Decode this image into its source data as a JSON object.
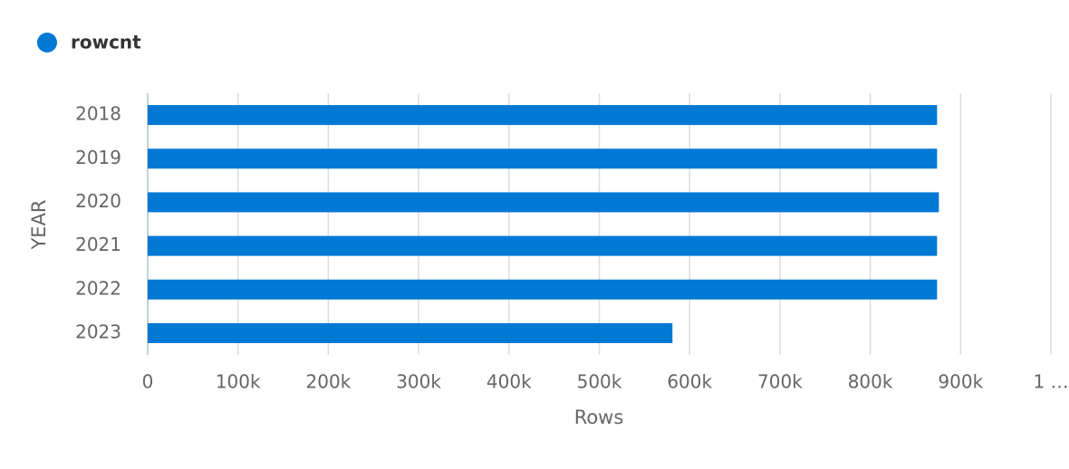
{
  "chart_data": {
    "type": "bar",
    "orientation": "horizontal",
    "legend": {
      "position": "top-left"
    },
    "series": [
      {
        "name": "rowcnt",
        "color": "#0078d4",
        "values": [
          874000,
          874000,
          876000,
          874000,
          874000,
          581000
        ]
      }
    ],
    "categories": [
      "2018",
      "2019",
      "2020",
      "2021",
      "2022",
      "2023"
    ],
    "y_label": "YEAR",
    "x_label": "Rows",
    "xlim": [
      0,
      1000000
    ],
    "xticks": [
      0,
      {
        "value": 100000,
        "label": "100k"
      },
      {
        "value": 200000,
        "label": "200k"
      },
      {
        "value": 300000,
        "label": "300k"
      },
      {
        "value": 400000,
        "label": "400k"
      },
      {
        "value": 500000,
        "label": "500k"
      },
      {
        "value": 600000,
        "label": "600k"
      },
      {
        "value": 700000,
        "label": "700k"
      },
      {
        "value": 800000,
        "label": "800k"
      },
      {
        "value": 900000,
        "label": "900k"
      },
      {
        "value": 1000000,
        "label": "1 …"
      }
    ],
    "grid": true
  }
}
